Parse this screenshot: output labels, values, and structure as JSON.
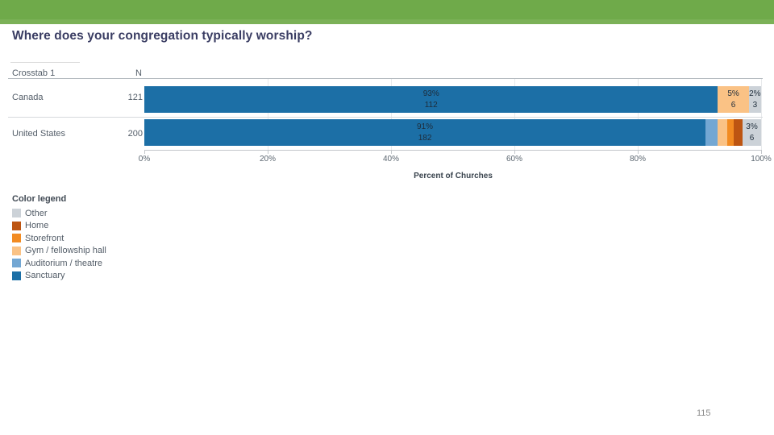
{
  "banner": {
    "color": "#6faa4a",
    "strip_color": "#7fb35c"
  },
  "slide": {
    "title": "Where does your congregation typically worship?",
    "page_number": "115"
  },
  "chart_data": {
    "type": "bar",
    "subtype": "horizontal-stacked",
    "table": {
      "header_col": "Crosstab 1",
      "n_col": "N"
    },
    "xlabel": "Percent of Churches",
    "xlim": [
      0,
      100
    ],
    "xticks": [
      {
        "label": "0%",
        "value": 0
      },
      {
        "label": "20%",
        "value": 20
      },
      {
        "label": "40%",
        "value": 40
      },
      {
        "label": "60%",
        "value": 60
      },
      {
        "label": "80%",
        "value": 80
      },
      {
        "label": "100%",
        "value": 100
      }
    ],
    "rows": [
      {
        "label": "Canada",
        "n": "121",
        "segments": [
          {
            "category": "Sanctuary",
            "pct": 93,
            "label_pct": "93%",
            "label_count": "112"
          },
          {
            "category": "Gym / fellowship hall",
            "pct": 5,
            "label_pct": "5%",
            "label_count": "6"
          },
          {
            "category": "Other",
            "pct": 2,
            "label_pct": "2%",
            "label_count": "3"
          }
        ]
      },
      {
        "label": "United States",
        "n": "200",
        "segments": [
          {
            "category": "Sanctuary",
            "pct": 91,
            "label_pct": "91%",
            "label_count": "182"
          },
          {
            "category": "Auditorium / theatre",
            "pct": 2
          },
          {
            "category": "Gym / fellowship hall",
            "pct": 1.5
          },
          {
            "category": "Storefront",
            "pct": 1
          },
          {
            "category": "Home",
            "pct": 1.5
          },
          {
            "category": "Other",
            "pct": 3,
            "label_pct": "3%",
            "label_count": "6"
          }
        ]
      }
    ],
    "legend_position": "bottom-left",
    "grid": true
  },
  "legend": {
    "title": "Color legend",
    "items": [
      {
        "label": "Other",
        "color": "#ccd2d8"
      },
      {
        "label": "Home",
        "color": "#bd5512"
      },
      {
        "label": "Storefront",
        "color": "#f28b22"
      },
      {
        "label": "Gym / fellowship hall",
        "color": "#fac285"
      },
      {
        "label": "Auditorium / theatre",
        "color": "#73a7d3"
      },
      {
        "label": "Sanctuary",
        "color": "#1c6fa6"
      }
    ]
  }
}
